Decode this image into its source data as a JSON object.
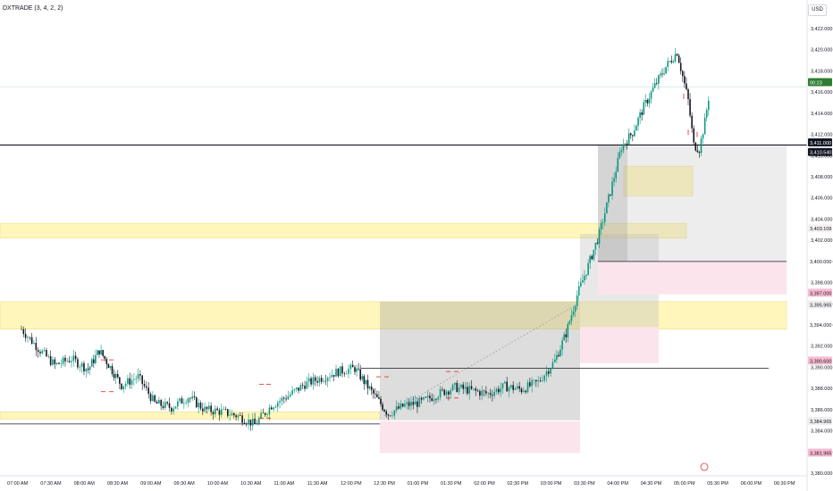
{
  "header": {
    "symbol_title": "DXTRADE (3, 4, 2, 2)",
    "currency": "USD"
  },
  "colors": {
    "up": "#089981",
    "down": "#131722",
    "yellow_zone": "#fff5b5",
    "pink_zone": "#fce4ec",
    "grey_zone": "#9e9e9e"
  },
  "chart_data": {
    "type": "candlestick",
    "y_range": [
      3380,
      3424
    ],
    "y_ticks": [
      "3,422.000",
      "3,420.000",
      "3,418.000",
      "3,416.000",
      "3,414.000",
      "3,412.000",
      "3,410.000",
      "3,408.000",
      "3,406.000",
      "3,404.000",
      "3,402.000",
      "3,400.000",
      "3,398.000",
      "3,396.000",
      "3,394.000",
      "3,392.000",
      "3,390.000",
      "3,388.000",
      "3,386.000",
      "3,384.000",
      "3,382.000",
      "3,380.000"
    ],
    "x_ticks": [
      "07:00 AM",
      "07:30 AM",
      "08:00 AM",
      "08:30 AM",
      "09:00 AM",
      "09:30 AM",
      "10:00 AM",
      "10:30 AM",
      "11:00 AM",
      "11:30 AM",
      "12:00 PM",
      "12:30 PM",
      "01:00 PM",
      "01:30 PM",
      "02:00 PM",
      "02:30 PM",
      "03:00 PM",
      "03:30 PM",
      "04:00 PM",
      "04:30 PM",
      "05:00 PM",
      "05:30 PM",
      "06:00 PM",
      "06:30 PM"
    ],
    "x_axis_end": "06:30 PM",
    "price_path": [
      [
        "07:00 AM",
        3393.6
      ],
      [
        "07:15 AM",
        3391.8
      ],
      [
        "07:30 AM",
        3390.2
      ],
      [
        "07:45 AM",
        3390.8
      ],
      [
        "08:00 AM",
        3389.8
      ],
      [
        "08:10 AM",
        3391.6
      ],
      [
        "08:20 AM",
        3390.0
      ],
      [
        "08:30 AM",
        3388.3
      ],
      [
        "08:45 AM",
        3389.1
      ],
      [
        "09:00 AM",
        3386.6
      ],
      [
        "09:15 AM",
        3386.2
      ],
      [
        "09:30 AM",
        3387.2
      ],
      [
        "09:45 AM",
        3386.0
      ],
      [
        "10:00 AM",
        3385.8
      ],
      [
        "10:15 AM",
        3385.4
      ],
      [
        "10:30 AM",
        3384.6
      ],
      [
        "10:45 AM",
        3386.4
      ],
      [
        "11:00 AM",
        3387.3
      ],
      [
        "11:15 AM",
        3388.4
      ],
      [
        "11:30 AM",
        3389.0
      ],
      [
        "11:45 AM",
        3389.6
      ],
      [
        "12:00 PM",
        3389.9
      ],
      [
        "12:10 PM",
        3388.4
      ],
      [
        "12:20 PM",
        3387.0
      ],
      [
        "12:30 PM",
        3385.6
      ],
      [
        "12:45 PM",
        3386.4
      ],
      [
        "01:00 PM",
        3386.7
      ],
      [
        "01:15 PM",
        3387.5
      ],
      [
        "01:30 PM",
        3388.1
      ],
      [
        "01:45 PM",
        3387.8
      ],
      [
        "02:00 PM",
        3387.5
      ],
      [
        "02:15 PM",
        3388.2
      ],
      [
        "02:30 PM",
        3387.9
      ],
      [
        "02:45 PM",
        3388.6
      ],
      [
        "03:00 PM",
        3390.6
      ],
      [
        "03:10 PM",
        3393.2
      ],
      [
        "03:20 PM",
        3396.8
      ],
      [
        "03:30 PM",
        3399.6
      ],
      [
        "03:40 PM",
        3402.6
      ],
      [
        "03:50 PM",
        3406.6
      ],
      [
        "04:00 PM",
        3410.8
      ],
      [
        "04:10 PM",
        3412.2
      ],
      [
        "04:20 PM",
        3414.6
      ],
      [
        "04:30 PM",
        3416.6
      ],
      [
        "04:40 PM",
        3418.4
      ],
      [
        "04:50 PM",
        3419.8
      ],
      [
        "05:00 PM",
        3415.2
      ],
      [
        "05:05 PM",
        3411.0
      ],
      [
        "05:10 PM",
        3410.6
      ],
      [
        "05:15 PM",
        3413.2
      ],
      [
        "05:20 PM",
        3416.6
      ]
    ],
    "horizontal_levels": [
      {
        "price": 3411.0,
        "style": "solid",
        "color": "#131722",
        "label": "3,411.000"
      },
      {
        "price": 3416.5,
        "style": "solid",
        "color": "#cfe3de",
        "label": ""
      },
      {
        "price": 3400.0,
        "style": "solid",
        "color": "#131722",
        "label": "3,400.000"
      },
      {
        "price": 3389.9,
        "style": "solid",
        "color": "#131722",
        "label": ""
      },
      {
        "price": 3384.65,
        "style": "solid",
        "color": "#131722",
        "label": ""
      }
    ],
    "price_tags": [
      {
        "label": "00:23",
        "price": 3416.9,
        "bg": "#2e7d32",
        "fg": "#ffffff"
      },
      {
        "label": "3,411.000",
        "price": 3411.2,
        "bg": "#131722",
        "fg": "#ffffff"
      },
      {
        "label": "3,410.540",
        "price": 3410.3,
        "bg": "#131722",
        "fg": "#ffffff"
      },
      {
        "label": "3,403.109",
        "price": 3403.1,
        "bg": "#f3f0f0",
        "fg": "#131722"
      },
      {
        "label": "3,400.000",
        "price": 3400.0,
        "bg": "#ffffff",
        "fg": "#131722"
      },
      {
        "label": "3,397.000",
        "price": 3397.0,
        "bg": "#f8bbd0",
        "fg": "#131722"
      },
      {
        "label": "3,395.965",
        "price": 3395.9,
        "bg": "#eeeeee",
        "fg": "#131722"
      },
      {
        "label": "3,394.000",
        "price": 3394.0,
        "bg": "#ffffff",
        "fg": "#131722"
      },
      {
        "label": "3,390.600",
        "price": 3390.6,
        "bg": "#f8bbd0",
        "fg": "#131722"
      },
      {
        "label": "3,384.965",
        "price": 3384.9,
        "bg": "#eeeeee",
        "fg": "#131722"
      },
      {
        "label": "3,381.965",
        "price": 3381.9,
        "bg": "#f8bbd0",
        "fg": "#131722"
      }
    ]
  }
}
